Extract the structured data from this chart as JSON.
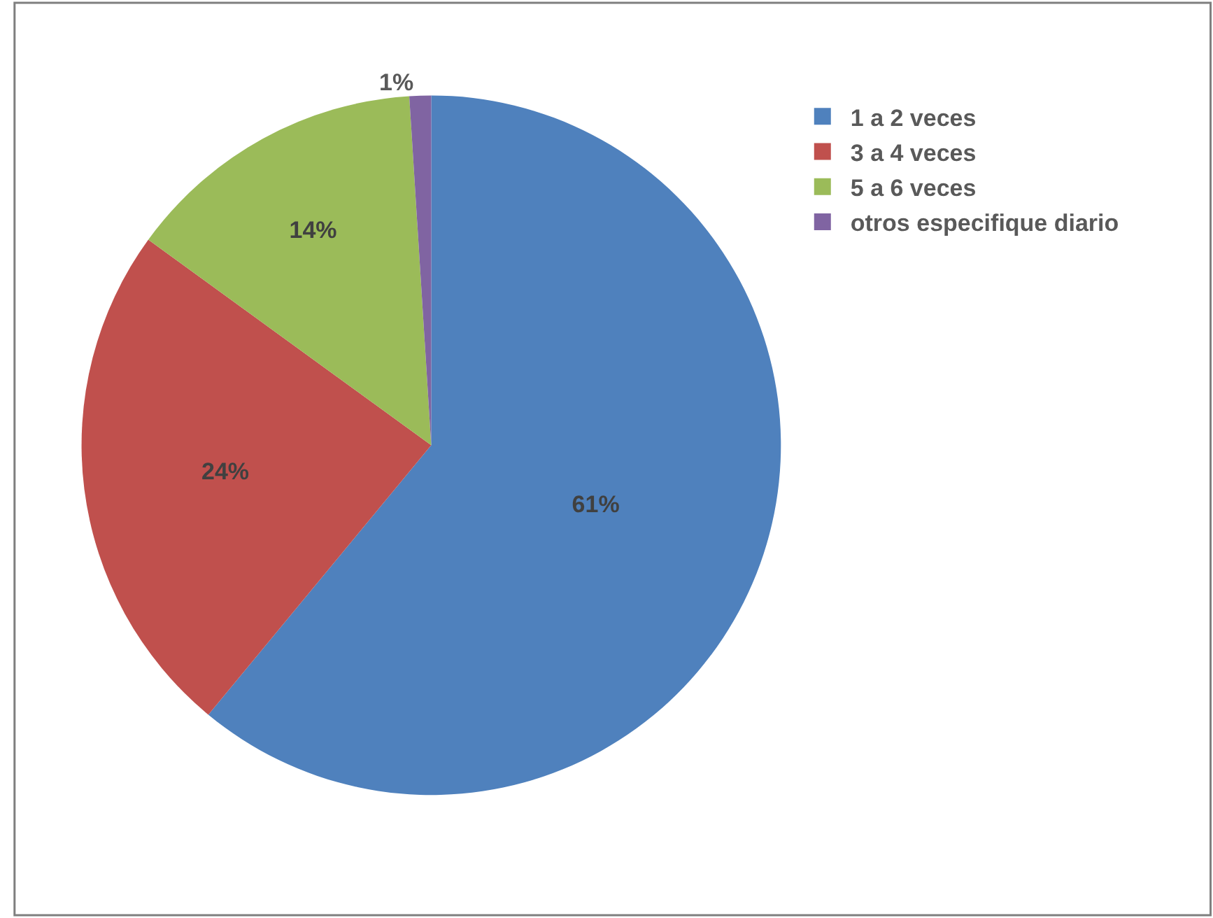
{
  "chart_data": {
    "type": "pie",
    "categories": [
      "1 a 2 veces",
      "3 a 4 veces",
      "5 a 6 veces",
      "otros especifique diario"
    ],
    "values": [
      61,
      24,
      14,
      1
    ],
    "colors": [
      "#4f81bd",
      "#c0504d",
      "#9bbb59",
      "#8064a2"
    ],
    "value_labels": [
      "61%",
      "24%",
      "14%",
      "1%"
    ],
    "legend": "right"
  }
}
